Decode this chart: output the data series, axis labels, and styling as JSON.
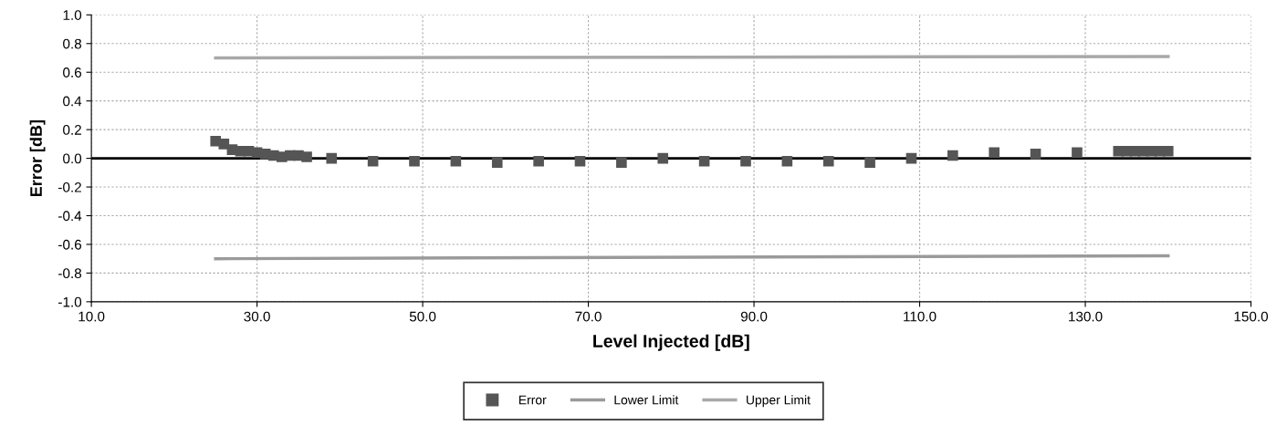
{
  "chart_data": {
    "type": "scatter",
    "xlabel": "Level Injected [dB]",
    "ylabel": "Error [dB]",
    "xlim": [
      10,
      150
    ],
    "xticks": [
      {
        "value": 10,
        "label": "10.0"
      },
      {
        "value": 30,
        "label": "30.0"
      },
      {
        "value": 50,
        "label": "50.0"
      },
      {
        "value": 70,
        "label": "70.0"
      },
      {
        "value": 90,
        "label": "90.0"
      },
      {
        "value": 110,
        "label": "110.0"
      },
      {
        "value": 130,
        "label": "130.0"
      },
      {
        "value": 150,
        "label": "150.0"
      }
    ],
    "ylim": [
      -1,
      1
    ],
    "yticks": [
      {
        "value": -1,
        "label": "-1.0"
      },
      {
        "value": -0.8,
        "label": "-0.8"
      },
      {
        "value": -0.6,
        "label": "-0.6"
      },
      {
        "value": -0.4,
        "label": "-0.4"
      },
      {
        "value": -0.2,
        "label": "-0.2"
      },
      {
        "value": 0,
        "label": "0.0"
      },
      {
        "value": 0.2,
        "label": "0.2"
      },
      {
        "value": 0.4,
        "label": "0.4"
      },
      {
        "value": 0.6,
        "label": "0.6"
      },
      {
        "value": 0.8,
        "label": "0.8"
      },
      {
        "value": 1,
        "label": "1.0"
      }
    ],
    "grid": true,
    "legend": "bottom",
    "marker": "square",
    "ref_lines": [
      {
        "axis": "y",
        "value": 0,
        "color": "#000000"
      }
    ],
    "series": [
      {
        "name": "Error",
        "color": "#555555",
        "x": [
          25,
          26,
          27,
          28,
          29,
          30,
          31,
          32,
          33,
          34,
          35,
          36,
          39,
          44,
          49,
          54,
          59,
          64,
          69,
          74,
          79,
          84,
          89,
          94,
          99,
          104,
          109,
          114,
          119,
          124,
          129,
          134,
          135,
          136,
          137,
          138,
          139,
          140
        ],
        "values": [
          0.12,
          0.1,
          0.06,
          0.05,
          0.05,
          0.04,
          0.03,
          0.02,
          0.01,
          0.02,
          0.02,
          0.01,
          0.0,
          -0.02,
          -0.02,
          -0.02,
          -0.03,
          -0.02,
          -0.02,
          -0.03,
          0.0,
          -0.02,
          -0.02,
          -0.02,
          -0.02,
          -0.03,
          0.0,
          0.02,
          0.04,
          0.03,
          0.04,
          0.05,
          0.05,
          0.05,
          0.05,
          0.05,
          0.05,
          0.05
        ]
      },
      {
        "name": "Lower Limit",
        "type": "line",
        "color": "#9a9a9a",
        "marker": "none",
        "x": [
          25,
          140
        ],
        "values": [
          -0.7,
          -0.68
        ]
      },
      {
        "name": "Upper Limit",
        "type": "line",
        "color": "#a8a8a8",
        "marker": "none",
        "x": [
          25,
          140
        ],
        "values": [
          0.7,
          0.71
        ]
      }
    ]
  }
}
